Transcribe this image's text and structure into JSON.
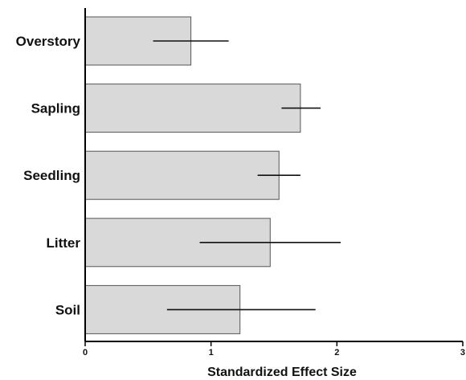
{
  "chart_data": {
    "type": "bar",
    "orientation": "horizontal",
    "title": "",
    "xlabel": "Standardized Effect Size",
    "ylabel": "",
    "xlim": [
      0,
      3
    ],
    "xticks": [
      "0",
      "1",
      "2",
      "3"
    ],
    "grid": false,
    "categories": [
      "Overstory",
      "Sapling",
      "Seedling",
      "Litter",
      "Soil"
    ],
    "values": [
      0.84,
      1.71,
      1.54,
      1.47,
      1.23
    ],
    "error_low": [
      0.54,
      1.56,
      1.37,
      0.91,
      0.65
    ],
    "error_high": [
      1.14,
      1.87,
      1.71,
      2.03,
      1.83
    ],
    "colors": {
      "bar_fill": "#d9d9d9",
      "bar_stroke": "#555555",
      "error_bar": "#111111",
      "axis": "#000000"
    }
  }
}
